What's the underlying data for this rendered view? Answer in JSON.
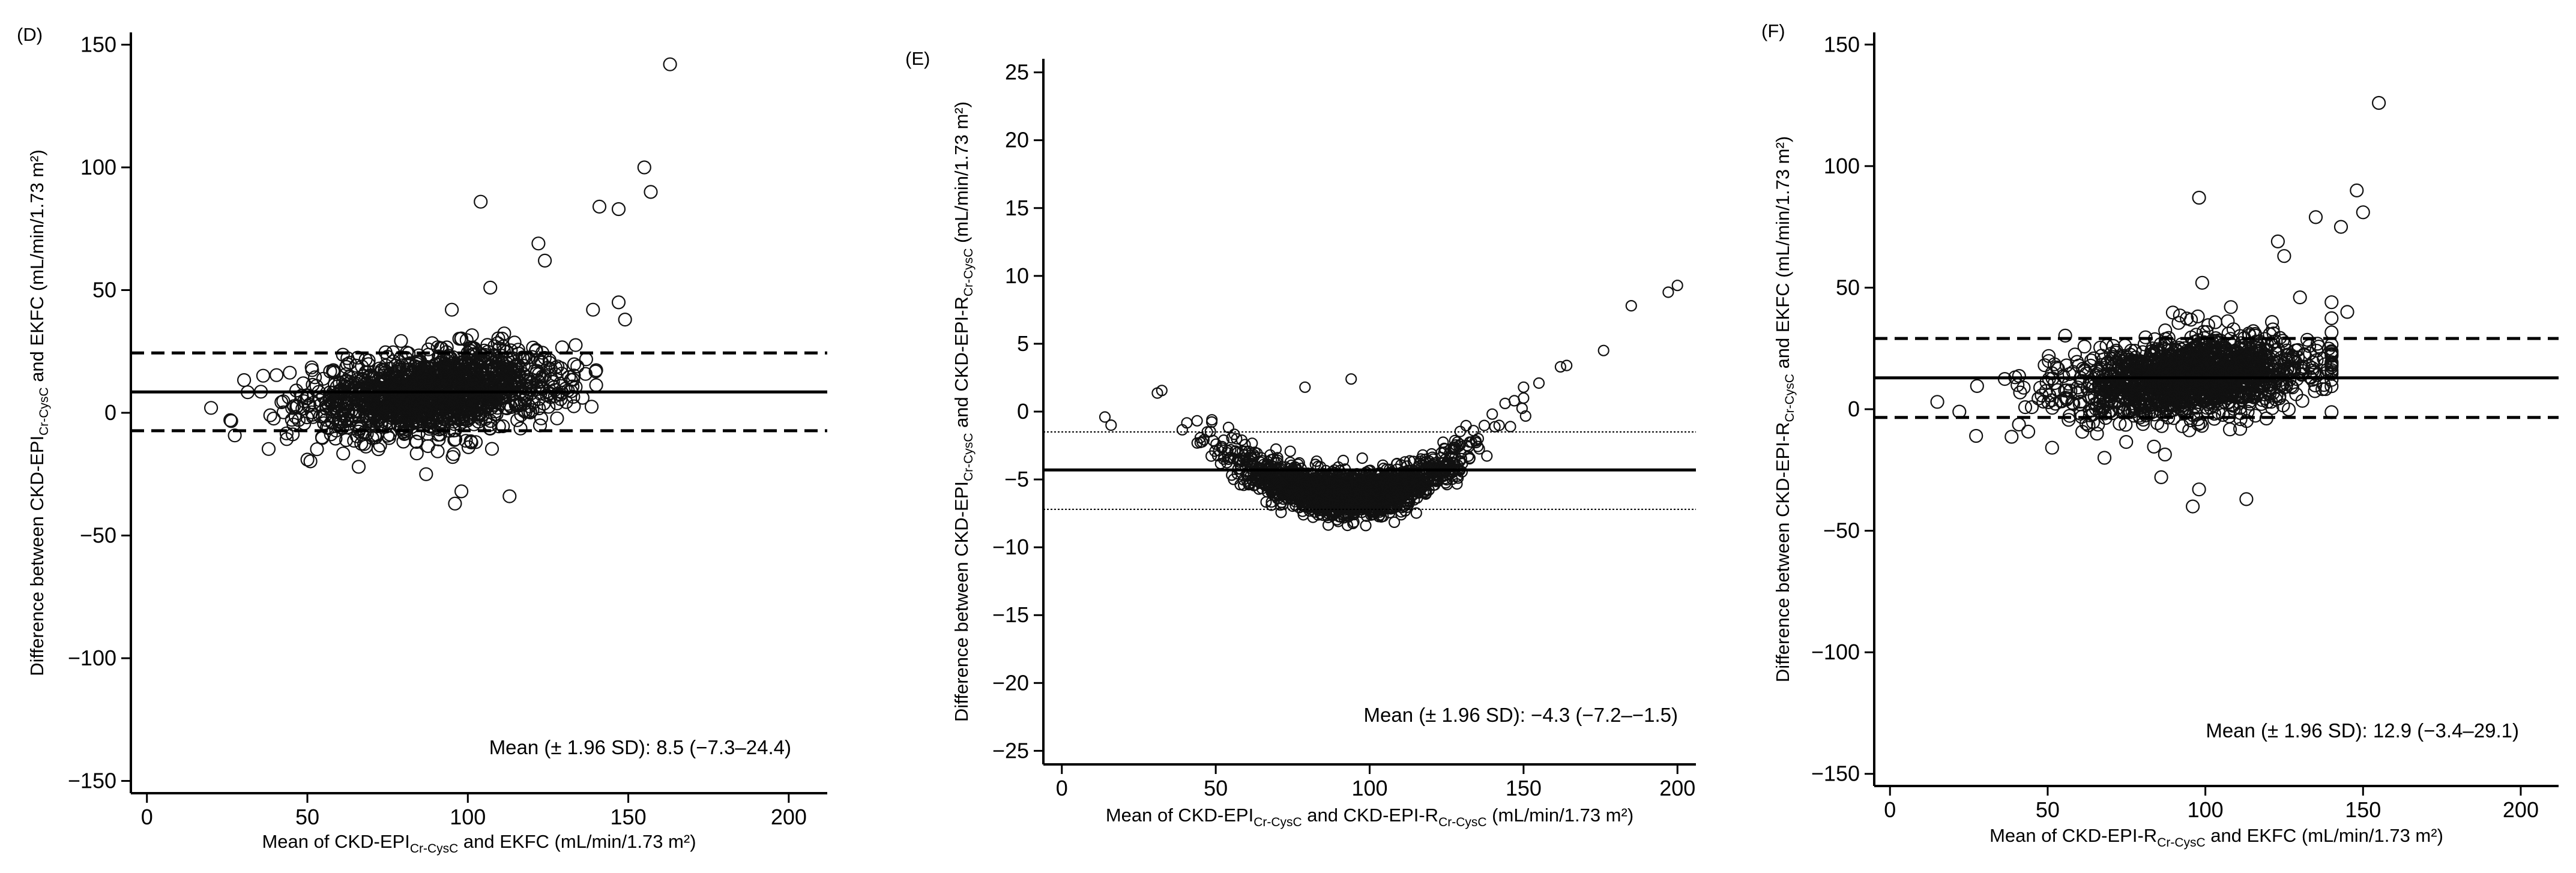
{
  "chart_data": [
    {
      "type": "scatter",
      "panel_label": "(D)",
      "xlabel": {
        "pre": "Mean of CKD-EPI",
        "sub": "Cr-CysC",
        "post": " and EKFC (mL/min/1.73 m²)"
      },
      "ylabel": {
        "pre": "Difference between CKD-EPI",
        "sub": "Cr-CysC",
        "post": " and EKFC (mL/min/1.73 m²)"
      },
      "xlim": [
        -5,
        212
      ],
      "ylim": [
        -155,
        155
      ],
      "xticks": [
        0,
        50,
        100,
        150,
        200
      ],
      "yticks": [
        -150,
        -100,
        -50,
        0,
        50,
        100,
        150
      ],
      "mean": 8.5,
      "upper_loa": 24.4,
      "lower_loa": -7.3,
      "line_styles": {
        "mean": "solid",
        "limits": "dashed"
      },
      "annotation": "Mean (± 1.96 SD): 8.5 (−7.3–24.4)",
      "cloud": {
        "center_x": 90,
        "spread_x": 20,
        "x_range": [
          12,
          140
        ],
        "center_y": 8.5,
        "sd_y": 8.1,
        "slope": 0.13,
        "n": 1500
      },
      "outliers": [
        [
          163,
          142
        ],
        [
          155,
          100
        ],
        [
          157,
          90
        ],
        [
          147,
          83
        ],
        [
          141,
          84
        ],
        [
          104,
          86
        ],
        [
          122,
          69
        ],
        [
          124,
          62
        ],
        [
          107,
          51
        ],
        [
          147,
          45
        ],
        [
          149,
          38
        ],
        [
          139,
          42
        ],
        [
          95,
          42
        ],
        [
          98,
          -32
        ],
        [
          113,
          -34
        ],
        [
          96,
          -37
        ],
        [
          87,
          -25
        ],
        [
          66,
          -22
        ],
        [
          20,
          2
        ],
        [
          26,
          -3
        ]
      ]
    },
    {
      "type": "scatter",
      "panel_label": "(E)",
      "xlabel": {
        "pre": "Mean of CKD-EPI",
        "sub": "Cr-CysC",
        "mid": " and CKD-EPI-R",
        "sub2": "Cr-CysC",
        "post": " (mL/min/1.73 m²)"
      },
      "ylabel": {
        "pre": "Difference between CKD-EPI",
        "sub": "Cr-CysC",
        "mid": " and CKD-EPI-R",
        "sub2": "Cr-CysC",
        "post": " (mL/min/1.73 m²)"
      },
      "xlim": [
        -6,
        206
      ],
      "ylim": [
        -26,
        26
      ],
      "xticks": [
        0,
        50,
        100,
        150,
        200
      ],
      "yticks": [
        -25,
        -20,
        -15,
        -10,
        -5,
        0,
        5,
        10,
        15,
        20,
        25
      ],
      "mean": -4.3,
      "upper_loa": -1.5,
      "lower_loa": -7.2,
      "line_styles": {
        "mean": "solid",
        "limits": "dotted"
      },
      "annotation": "Mean (± 1.96 SD): −4.3 (−7.2–−1.5)",
      "curve": {
        "vertex_x": 93,
        "vertex_y": -6.2,
        "k": 0.0021,
        "x_range": [
          12,
          160
        ],
        "noise": 0.8,
        "n": 1700
      },
      "outliers": [
        [
          200,
          9.3
        ],
        [
          197,
          8.8
        ],
        [
          185,
          7.8
        ],
        [
          176,
          4.5
        ],
        [
          164,
          3.4
        ],
        [
          162,
          3.3
        ],
        [
          155,
          2.1
        ],
        [
          150,
          1.8
        ],
        [
          150,
          1.0
        ],
        [
          147,
          0.8
        ],
        [
          144,
          0.6
        ],
        [
          94,
          2.4
        ],
        [
          79,
          1.8
        ],
        [
          14,
          -0.4
        ],
        [
          16,
          -1.0
        ]
      ]
    },
    {
      "type": "scatter",
      "panel_label": "(F)",
      "xlabel": {
        "pre": "Mean of CKD-EPI-R",
        "sub": "Cr-CysC",
        "post": " and EKFC (mL/min/1.73 m²)"
      },
      "ylabel": {
        "pre": "Difference between CKD-EPI-R",
        "sub": "Cr-CysC",
        "post": " and EKFC (mL/min/1.73 m²)"
      },
      "xlim": [
        -5,
        212
      ],
      "ylim": [
        -155,
        155
      ],
      "xticks": [
        0,
        50,
        100,
        150,
        200
      ],
      "yticks": [
        -150,
        -100,
        -50,
        0,
        50,
        100,
        150
      ],
      "mean": 12.9,
      "upper_loa": 29.1,
      "lower_loa": -3.4,
      "line_styles": {
        "mean": "solid",
        "limits": "dashed"
      },
      "annotation": "Mean (± 1.96 SD): 12.9 (−3.4–29.1)",
      "cloud": {
        "center_x": 95,
        "spread_x": 20,
        "x_range": [
          12,
          140
        ],
        "center_y": 12.9,
        "sd_y": 8.2,
        "slope": 0.12,
        "n": 1500
      },
      "outliers": [
        [
          155,
          126
        ],
        [
          148,
          90
        ],
        [
          150,
          81
        ],
        [
          143,
          75
        ],
        [
          135,
          79
        ],
        [
          98,
          87
        ],
        [
          123,
          69
        ],
        [
          125,
          63
        ],
        [
          99,
          52
        ],
        [
          140,
          44
        ],
        [
          145,
          40
        ],
        [
          130,
          46
        ],
        [
          98,
          -33
        ],
        [
          113,
          -37
        ],
        [
          96,
          -40
        ],
        [
          86,
          -28
        ],
        [
          68,
          -20
        ],
        [
          15,
          3
        ],
        [
          22,
          -1
        ]
      ]
    }
  ]
}
